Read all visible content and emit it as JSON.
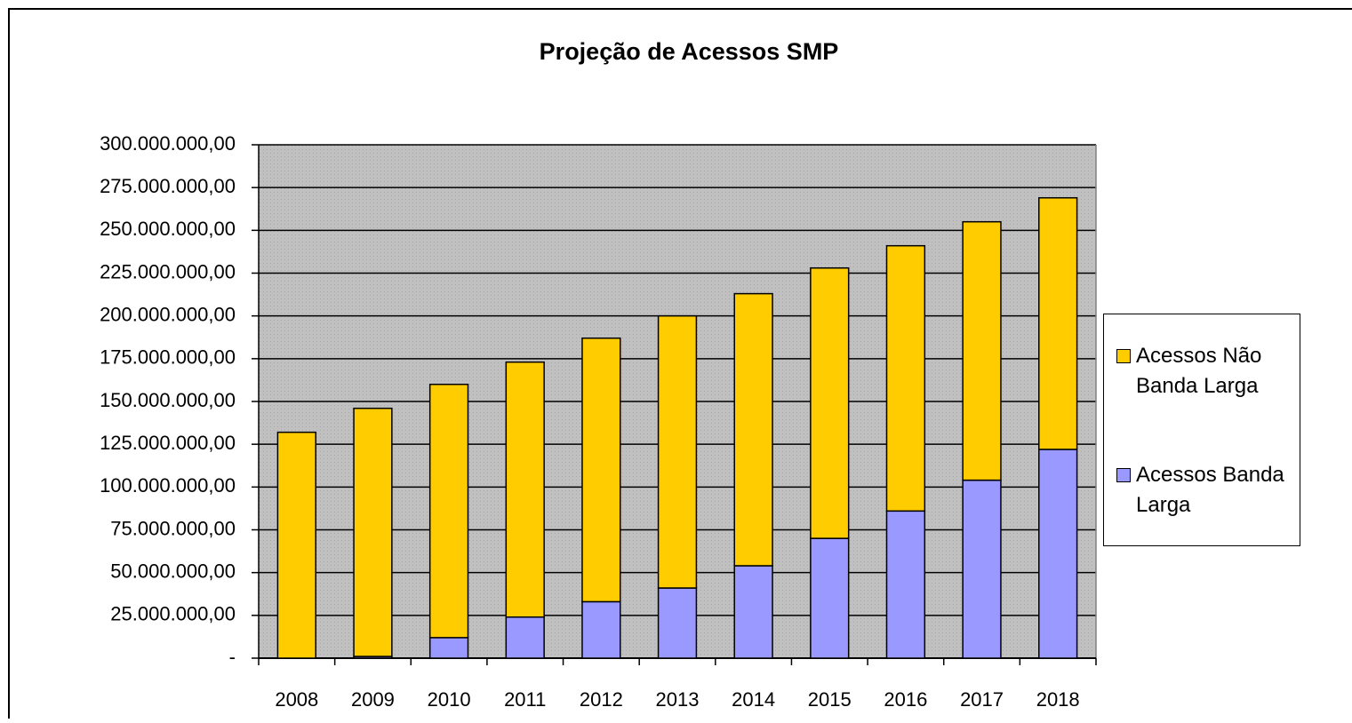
{
  "chart_data": {
    "type": "stacked_bar",
    "title": "Projeção de Acessos SMP",
    "categories": [
      "2008",
      "2009",
      "2010",
      "2011",
      "2012",
      "2013",
      "2014",
      "2015",
      "2016",
      "2017",
      "2018"
    ],
    "series": [
      {
        "name": "Acessos Não Banda Larga",
        "color": "#ffcc00",
        "values": [
          132000000,
          145000000,
          148000000,
          149000000,
          154000000,
          159000000,
          159000000,
          158000000,
          155000000,
          151000000,
          147000000
        ]
      },
      {
        "name": "Acessos Banda Larga",
        "color": "#9999ff",
        "values": [
          0,
          1000000,
          12000000,
          24000000,
          33000000,
          41000000,
          54000000,
          70000000,
          86000000,
          104000000,
          122000000
        ]
      }
    ],
    "ylim": [
      0,
      300000000
    ],
    "yticks": [
      {
        "value": 0,
        "label": "-"
      },
      {
        "value": 25000000,
        "label": "25.000.000,00"
      },
      {
        "value": 50000000,
        "label": "50.000.000,00"
      },
      {
        "value": 75000000,
        "label": "75.000.000,00"
      },
      {
        "value": 100000000,
        "label": "100.000.000,00"
      },
      {
        "value": 125000000,
        "label": "125.000.000,00"
      },
      {
        "value": 150000000,
        "label": "150.000.000,00"
      },
      {
        "value": 175000000,
        "label": "175.000.000,00"
      },
      {
        "value": 200000000,
        "label": "200.000.000,00"
      },
      {
        "value": 225000000,
        "label": "225.000.000,00"
      },
      {
        "value": 250000000,
        "label": "250.000.000,00"
      },
      {
        "value": 275000000,
        "label": "275.000.000,00"
      },
      {
        "value": 300000000,
        "label": "300.000.000,00"
      }
    ],
    "grid": true,
    "legend": "right"
  }
}
